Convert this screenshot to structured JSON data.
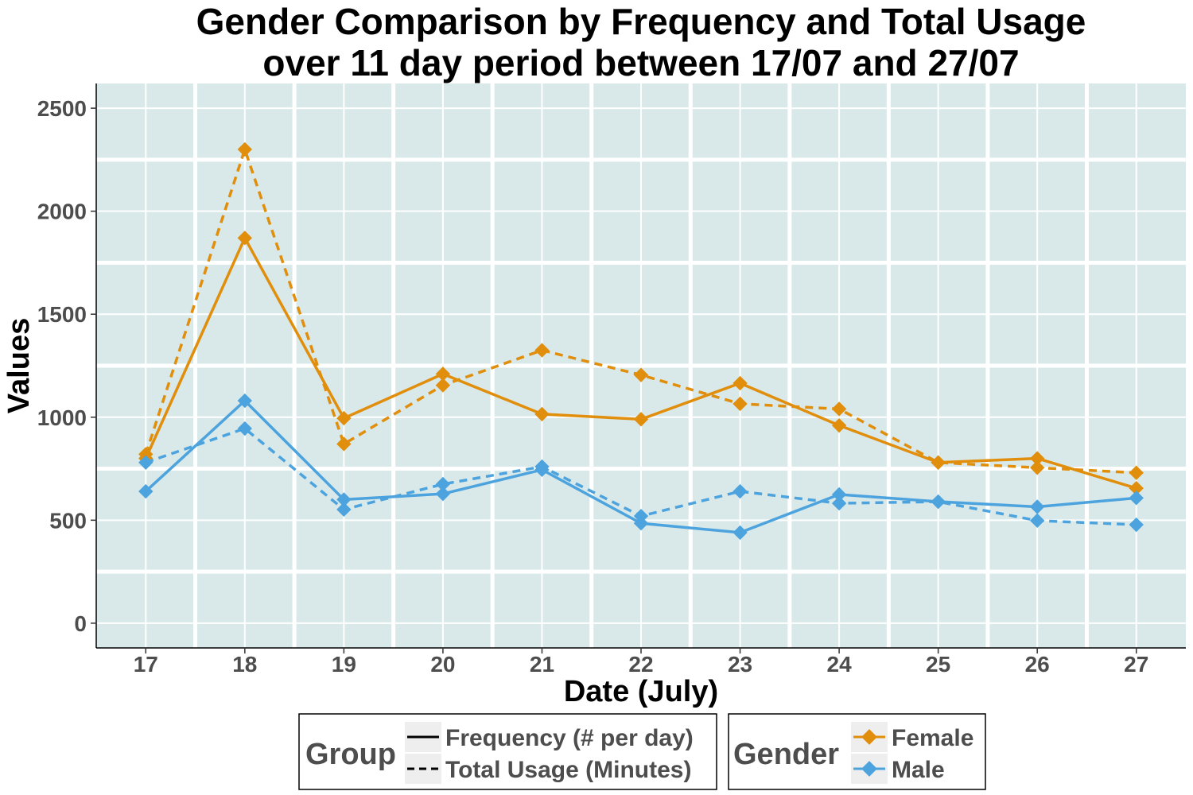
{
  "chart_data": {
    "type": "line",
    "title_lines": [
      "Gender Comparison by Frequency and Total Usage",
      "over 11 day period between 17/07 and 27/07"
    ],
    "xlabel": "Date (July)",
    "ylabel": "Values",
    "x": [
      17,
      18,
      19,
      20,
      21,
      22,
      23,
      24,
      25,
      26,
      27
    ],
    "x_tick_labels": [
      "17",
      "18",
      "19",
      "20",
      "21",
      "22",
      "23",
      "24",
      "25",
      "26",
      "27"
    ],
    "y_ticks": [
      0,
      500,
      1000,
      1500,
      2000,
      2500
    ],
    "y_tick_labels": [
      "0",
      "500",
      "1000",
      "1500",
      "2000",
      "2500"
    ],
    "ylim": [
      -120,
      2620
    ],
    "grid": true,
    "background_color": "#d9e9ea",
    "series": [
      {
        "gender": "Female",
        "group": "Frequency (# per day)",
        "color": "#e08e0b",
        "dashed": false,
        "values": [
          800,
          1870,
          995,
          1210,
          1015,
          990,
          1165,
          960,
          780,
          800,
          655
        ]
      },
      {
        "gender": "Female",
        "group": "Total Usage (Minutes)",
        "color": "#e08e0b",
        "dashed": true,
        "values": [
          820,
          2300,
          870,
          1155,
          1325,
          1205,
          1065,
          1040,
          780,
          755,
          730
        ]
      },
      {
        "gender": "Male",
        "group": "Frequency (# per day)",
        "color": "#4ca3dd",
        "dashed": false,
        "values": [
          640,
          1080,
          600,
          628,
          745,
          485,
          440,
          625,
          590,
          565,
          608
        ]
      },
      {
        "gender": "Male",
        "group": "Total Usage (Minutes)",
        "color": "#4ca3dd",
        "dashed": true,
        "values": [
          780,
          945,
          552,
          675,
          760,
          520,
          640,
          582,
          590,
          498,
          478
        ]
      }
    ],
    "legend": {
      "placement": "bottom",
      "group": {
        "title": "Group",
        "items": [
          "Frequency (# per day)",
          "Total Usage (Minutes)"
        ]
      },
      "gender": {
        "title": "Gender",
        "items": [
          {
            "label": "Female",
            "color": "#e08e0b"
          },
          {
            "label": "Male",
            "color": "#4ca3dd"
          }
        ]
      }
    }
  }
}
